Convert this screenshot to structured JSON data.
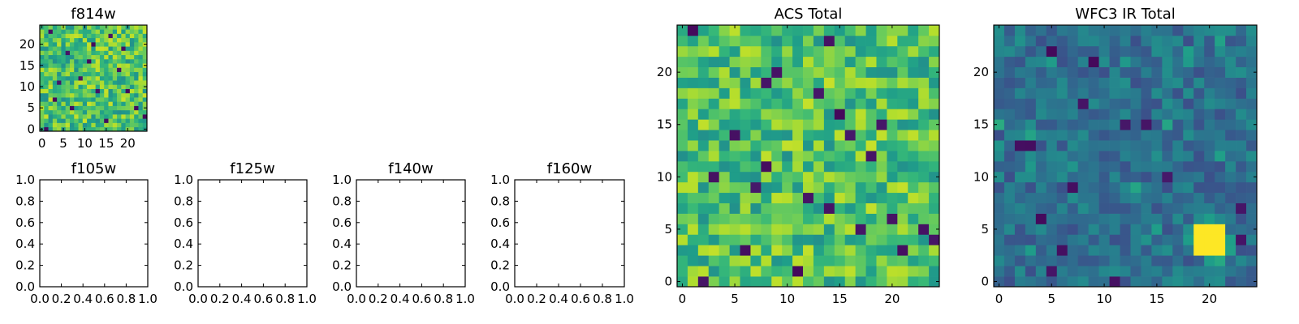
{
  "chart_data": [
    {
      "type": "heatmap",
      "title": "f814w",
      "xticks": [
        "0",
        "5",
        "10",
        "15",
        "20"
      ],
      "yticks": [
        "0",
        "5",
        "10",
        "15",
        "20"
      ],
      "xlim": [
        -0.5,
        24.5
      ],
      "ylim": [
        -0.5,
        24.5
      ],
      "grid_size": 25,
      "colormap": "viridis",
      "pattern": "uniform-noise",
      "low_pixels": [
        [
          1,
          0
        ],
        [
          3,
          7
        ],
        [
          15,
          2
        ],
        [
          22,
          5
        ],
        [
          9,
          12
        ],
        [
          18,
          14
        ],
        [
          6,
          18
        ],
        [
          12,
          20
        ],
        [
          20,
          9
        ],
        [
          4,
          11
        ],
        [
          16,
          22
        ],
        [
          24,
          3
        ],
        [
          7,
          5
        ],
        [
          11,
          16
        ],
        [
          19,
          19
        ],
        [
          2,
          23
        ],
        [
          13,
          9
        ]
      ]
    },
    {
      "type": "heatmap",
      "title": "f105w",
      "xticks": [
        "0.0",
        "0.2",
        "0.4",
        "0.6",
        "0.8",
        "1.0"
      ],
      "yticks": [
        "0.0",
        "0.2",
        "0.4",
        "0.6",
        "0.8",
        "1.0"
      ],
      "xlim": [
        0,
        1
      ],
      "ylim": [
        0,
        1
      ],
      "empty": true
    },
    {
      "type": "heatmap",
      "title": "f125w",
      "xticks": [
        "0.0",
        "0.2",
        "0.4",
        "0.6",
        "0.8",
        "1.0"
      ],
      "yticks": [
        "0.0",
        "0.2",
        "0.4",
        "0.6",
        "0.8",
        "1.0"
      ],
      "xlim": [
        0,
        1
      ],
      "ylim": [
        0,
        1
      ],
      "empty": true
    },
    {
      "type": "heatmap",
      "title": "f140w",
      "xticks": [
        "0.0",
        "0.2",
        "0.4",
        "0.6",
        "0.8",
        "1.0"
      ],
      "yticks": [
        "0.0",
        "0.2",
        "0.4",
        "0.6",
        "0.8",
        "1.0"
      ],
      "xlim": [
        0,
        1
      ],
      "ylim": [
        0,
        1
      ],
      "empty": true
    },
    {
      "type": "heatmap",
      "title": "f160w",
      "xticks": [
        "0.0",
        "0.2",
        "0.4",
        "0.6",
        "0.8",
        "1.0"
      ],
      "yticks": [
        "0.0",
        "0.2",
        "0.4",
        "0.6",
        "0.8",
        "1.0"
      ],
      "xlim": [
        0,
        1
      ],
      "ylim": [
        0,
        1
      ],
      "empty": true
    },
    {
      "type": "heatmap",
      "title": "ACS Total",
      "xticks": [
        "0",
        "5",
        "10",
        "15",
        "20"
      ],
      "yticks": [
        "0",
        "5",
        "10",
        "15",
        "20"
      ],
      "xlim": [
        -0.5,
        24.5
      ],
      "ylim": [
        -0.5,
        24.5
      ],
      "grid_size": 25,
      "colormap": "viridis",
      "pattern": "uniform-noise",
      "low_pixels": [
        [
          2,
          0
        ],
        [
          1,
          24
        ],
        [
          8,
          19
        ],
        [
          14,
          23
        ],
        [
          18,
          12
        ],
        [
          13,
          18
        ],
        [
          15,
          16
        ],
        [
          16,
          14
        ],
        [
          5,
          14
        ],
        [
          8,
          11
        ],
        [
          3,
          10
        ],
        [
          12,
          8
        ],
        [
          7,
          9
        ],
        [
          20,
          6
        ],
        [
          14,
          7
        ],
        [
          23,
          5
        ],
        [
          17,
          5
        ],
        [
          21,
          3
        ],
        [
          24,
          4
        ],
        [
          19,
          15
        ],
        [
          6,
          3
        ],
        [
          11,
          1
        ],
        [
          9,
          20
        ]
      ]
    },
    {
      "type": "heatmap",
      "title": "WFC3 IR Total",
      "xticks": [
        "0",
        "5",
        "10",
        "15",
        "20"
      ],
      "yticks": [
        "0",
        "5",
        "10",
        "15",
        "20"
      ],
      "xlim": [
        -0.5,
        24.5
      ],
      "ylim": [
        -0.5,
        24.5
      ],
      "grid_size": 25,
      "colormap": "viridis",
      "pattern": "dark-noise-with-bright-source",
      "bright_source": {
        "x": 20,
        "y": 4
      },
      "low_pixels": [
        [
          5,
          22
        ],
        [
          3,
          13
        ],
        [
          2,
          13
        ],
        [
          8,
          17
        ],
        [
          12,
          15
        ],
        [
          14,
          15
        ],
        [
          7,
          9
        ],
        [
          16,
          10
        ],
        [
          23,
          7
        ],
        [
          5,
          1
        ],
        [
          4,
          6
        ],
        [
          18,
          4
        ],
        [
          9,
          21
        ],
        [
          23,
          4
        ],
        [
          11,
          0
        ],
        [
          6,
          3
        ]
      ]
    }
  ]
}
